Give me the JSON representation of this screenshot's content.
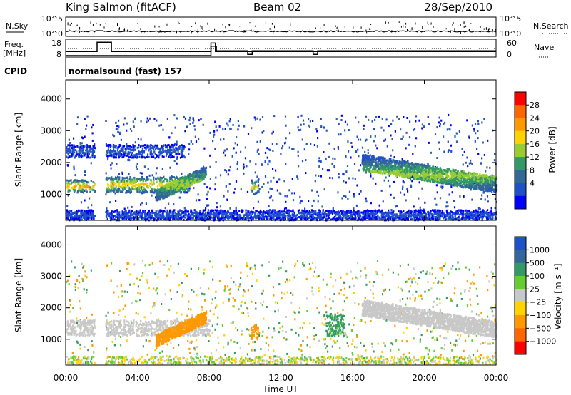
{
  "header": {
    "station": "King Salmon (fitACF)",
    "beam": "Beam 02",
    "date": "28/Sep/2010"
  },
  "noise_panel": {
    "left_label": "N.Sky",
    "right_label": "N.Search",
    "left_ticks": [
      "10^5",
      "10^0"
    ],
    "right_ticks": [
      "10^5",
      "10^0"
    ]
  },
  "freq_panel": {
    "left_label_1": "Freq.",
    "left_label_2": "[MHz]",
    "right_label": "Nave",
    "left_ticks": [
      "18",
      "8"
    ],
    "right_ticks": [
      "60",
      "0"
    ],
    "freq_steps": [
      {
        "from": 0.0,
        "to": 1.75,
        "mhz": 10.6
      },
      {
        "from": 1.75,
        "to": 2.55,
        "mhz": 16.5
      },
      {
        "from": 2.55,
        "to": 8.1,
        "mhz": 10.6
      },
      {
        "from": 8.1,
        "to": 8.35,
        "mhz": 16.0
      },
      {
        "from": 8.35,
        "to": 24.0,
        "mhz": 10.6
      }
    ],
    "nave_steps": [
      {
        "from": 0.0,
        "to": 8.1,
        "nave": 0
      },
      {
        "from": 8.1,
        "to": 8.4,
        "nave": 40
      },
      {
        "from": 8.4,
        "to": 10.15,
        "nave": 20
      },
      {
        "from": 10.15,
        "to": 10.4,
        "nave": 5
      },
      {
        "from": 10.4,
        "to": 13.8,
        "nave": 20
      },
      {
        "from": 13.8,
        "to": 14.05,
        "nave": 5
      },
      {
        "from": 14.05,
        "to": 24.0,
        "nave": 20
      }
    ]
  },
  "cpid": {
    "label": "CPID",
    "program": "normalsound (fast) 157"
  },
  "x_axis": {
    "label": "Time UT",
    "ticks": [
      "00:00",
      "04:00",
      "08:00",
      "12:00",
      "16:00",
      "20:00",
      "00:00"
    ]
  },
  "chart_data": [
    {
      "type": "heatmap",
      "quantity": "Power",
      "ylabel": "Slant Range [km]",
      "yticks": [
        1000,
        2000,
        3000,
        4000
      ],
      "ylim": [
        180,
        4600
      ],
      "xlim": [
        0,
        24
      ],
      "colorbar_label": "Power [dB]",
      "colorbar_ticks": [
        "28",
        "24",
        "20",
        "16",
        "12",
        "8",
        "4"
      ],
      "colorbar_colors": [
        "#ff0000",
        "#ff6600",
        "#ff9900",
        "#ffd200",
        "#99cc33",
        "#339966",
        "#336699",
        "#1e50c8",
        "#0000ff"
      ],
      "data_gap": [
        1.6,
        2.2
      ],
      "regions": [
        {
          "name": "E-region band",
          "t": [
            0.0,
            1.6
          ],
          "r": [
            1050,
            1450
          ],
          "level": 20
        },
        {
          "name": "early band",
          "t": [
            2.2,
            6.9
          ],
          "r": [
            1050,
            1550
          ],
          "level": 18
        },
        {
          "name": "upper band",
          "t": [
            0.0,
            6.6
          ],
          "r": [
            2150,
            2550
          ],
          "level": 6
        },
        {
          "name": "arc",
          "t": [
            5.0,
            7.8
          ],
          "r": [
            750,
            1900
          ],
          "level": 14
        },
        {
          "name": "midday patch",
          "t": [
            10.3,
            10.7
          ],
          "r": [
            1000,
            1450
          ],
          "level": 16
        },
        {
          "name": "evening band",
          "t": [
            16.5,
            24.0
          ],
          "r": [
            1000,
            2200
          ],
          "level": 14
        },
        {
          "name": "ground scatter floor",
          "t": [
            0.0,
            24.0
          ],
          "r": [
            180,
            500
          ],
          "level": 5
        }
      ]
    },
    {
      "type": "heatmap",
      "quantity": "Velocity",
      "ylabel": "Slant Range [km]",
      "yticks": [
        1000,
        2000,
        3000,
        4000
      ],
      "ylim": [
        180,
        4600
      ],
      "xlim": [
        0,
        24
      ],
      "colorbar_label": "Velocity [m s⁻¹]",
      "colorbar_ticks": [
        "1000",
        "500",
        "100",
        "25",
        "−25",
        "−100",
        "−500",
        "−1000"
      ],
      "colorbar_colors": [
        "#1e50c8",
        "#336699",
        "#339966",
        "#66cc33",
        "#c8c8c8",
        "#ffd200",
        "#ff9900",
        "#ff6600",
        "#ff0000"
      ],
      "data_gap": [
        1.6,
        2.2
      ],
      "regions": [
        {
          "name": "ground scatter band",
          "t": [
            0.0,
            8.0
          ],
          "r": [
            1100,
            1600
          ],
          "velocity": 0
        },
        {
          "name": "arc",
          "t": [
            5.0,
            7.8
          ],
          "r": [
            750,
            1900
          ],
          "velocity": -150
        },
        {
          "name": "midday patch",
          "t": [
            10.3,
            10.7
          ],
          "r": [
            1000,
            1450
          ],
          "velocity": -120
        },
        {
          "name": "afternoon patch",
          "t": [
            14.5,
            15.5
          ],
          "r": [
            1100,
            1800
          ],
          "velocity": 110
        },
        {
          "name": "evening band",
          "t": [
            16.5,
            24.0
          ],
          "r": [
            1000,
            2200
          ],
          "velocity": 0
        }
      ]
    }
  ]
}
